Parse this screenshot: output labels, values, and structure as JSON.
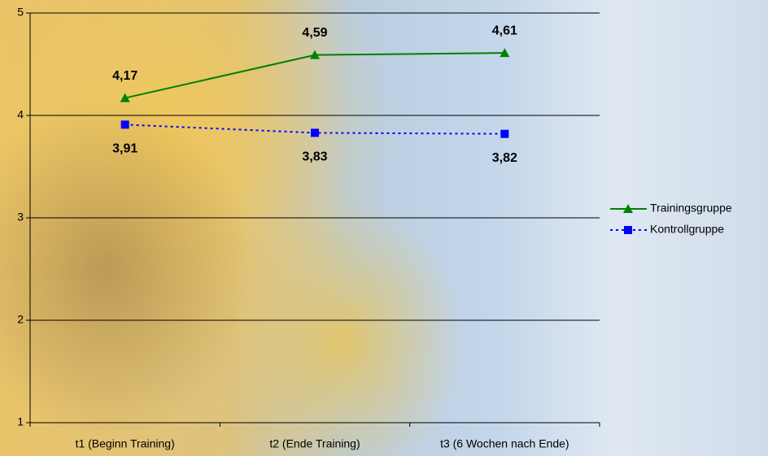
{
  "chart_data": {
    "type": "line",
    "categories": [
      "t1 (Beginn Training)",
      "t2 (Ende Training)",
      "t3 (6 Wochen nach Ende)"
    ],
    "series": [
      {
        "name": "Trainingsgruppe",
        "color": "#008000",
        "marker": "triangle",
        "dash": "solid",
        "label_position": "above",
        "values": [
          4.17,
          4.59,
          4.61
        ],
        "value_labels": [
          "4,17",
          "4,59",
          "4,61"
        ]
      },
      {
        "name": "Kontrollgruppe",
        "color": "#0000ff",
        "marker": "square",
        "dash": "dotted",
        "label_position": "below",
        "values": [
          3.91,
          3.83,
          3.82
        ],
        "value_labels": [
          "3,91",
          "3,83",
          "3,82"
        ]
      }
    ],
    "ylim": [
      1,
      5
    ],
    "yticks": [
      1,
      2,
      3,
      4,
      5
    ],
    "grid": true,
    "legend": "right"
  }
}
